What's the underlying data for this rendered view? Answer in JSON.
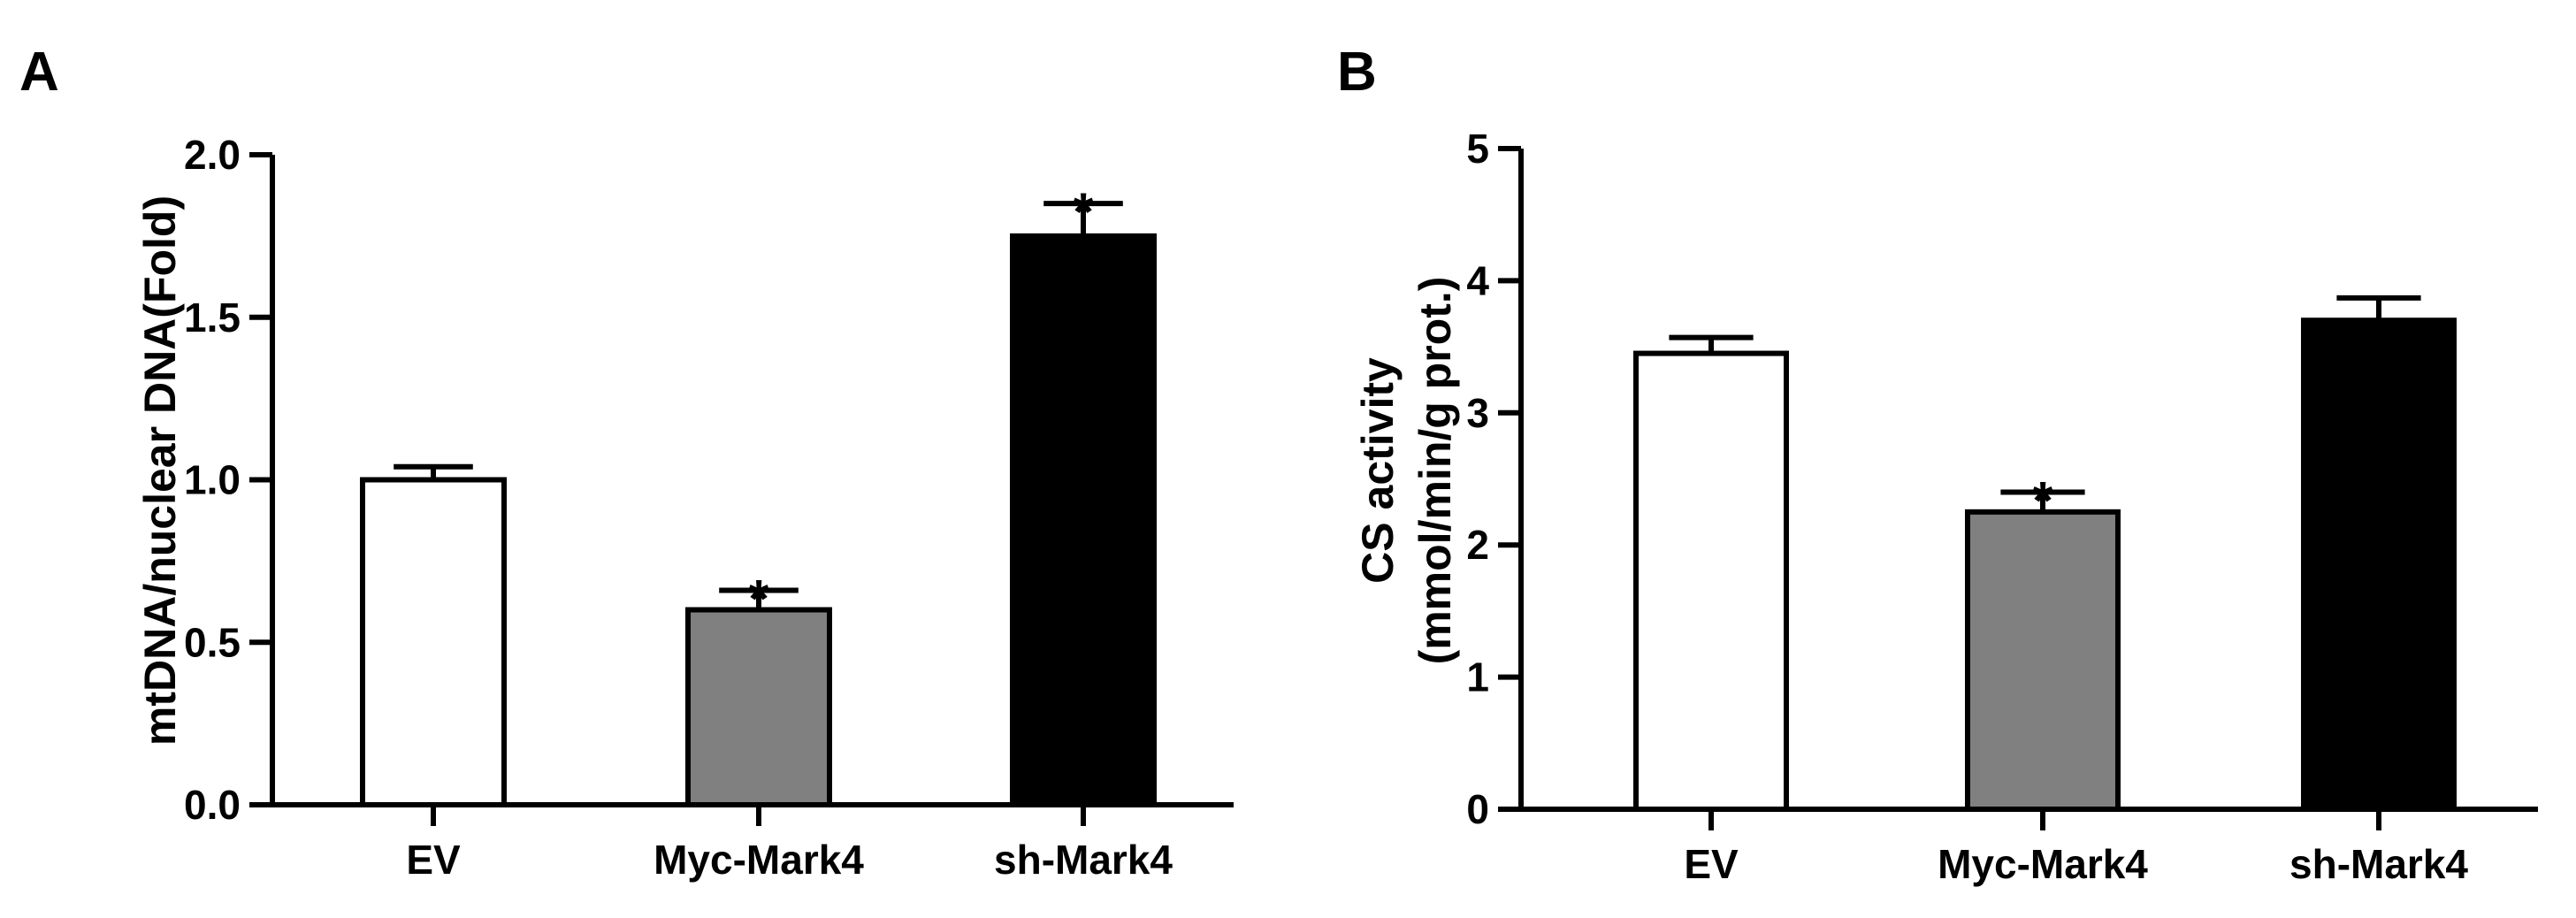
{
  "chart_data": [
    {
      "panel_label": "A",
      "type": "bar",
      "categories": [
        "EV",
        "Myc-Mark4",
        "sh-Mark4"
      ],
      "values": [
        1.0,
        0.6,
        1.75
      ],
      "errors": [
        0.04,
        0.06,
        0.1
      ],
      "significance": [
        "",
        "*",
        "*"
      ],
      "bar_colors": [
        "#ffffff",
        "#808080",
        "#000000"
      ],
      "ylabel": "mtDNA/nuclear DNA(Fold)",
      "ylim": [
        0,
        2.0
      ],
      "yticks": [
        0.0,
        0.5,
        1.0,
        1.5,
        2.0
      ],
      "ytick_labels": [
        "0.0",
        "0.5",
        "1.0",
        "1.5",
        "2.0"
      ],
      "grid": false
    },
    {
      "panel_label": "B",
      "type": "bar",
      "categories": [
        "EV",
        "Myc-Mark4",
        "sh-Mark4"
      ],
      "values": [
        3.45,
        2.25,
        3.7
      ],
      "errors": [
        0.12,
        0.15,
        0.17
      ],
      "significance": [
        "",
        "*",
        ""
      ],
      "bar_colors": [
        "#ffffff",
        "#808080",
        "#000000"
      ],
      "ylabel_lines": [
        "CS activity",
        "(mmol/min/g prot.)"
      ],
      "ylim": [
        0,
        5
      ],
      "yticks": [
        0,
        1,
        2,
        3,
        4,
        5
      ],
      "ytick_labels": [
        "0",
        "1",
        "2",
        "3",
        "4",
        "5"
      ],
      "grid": false
    }
  ]
}
